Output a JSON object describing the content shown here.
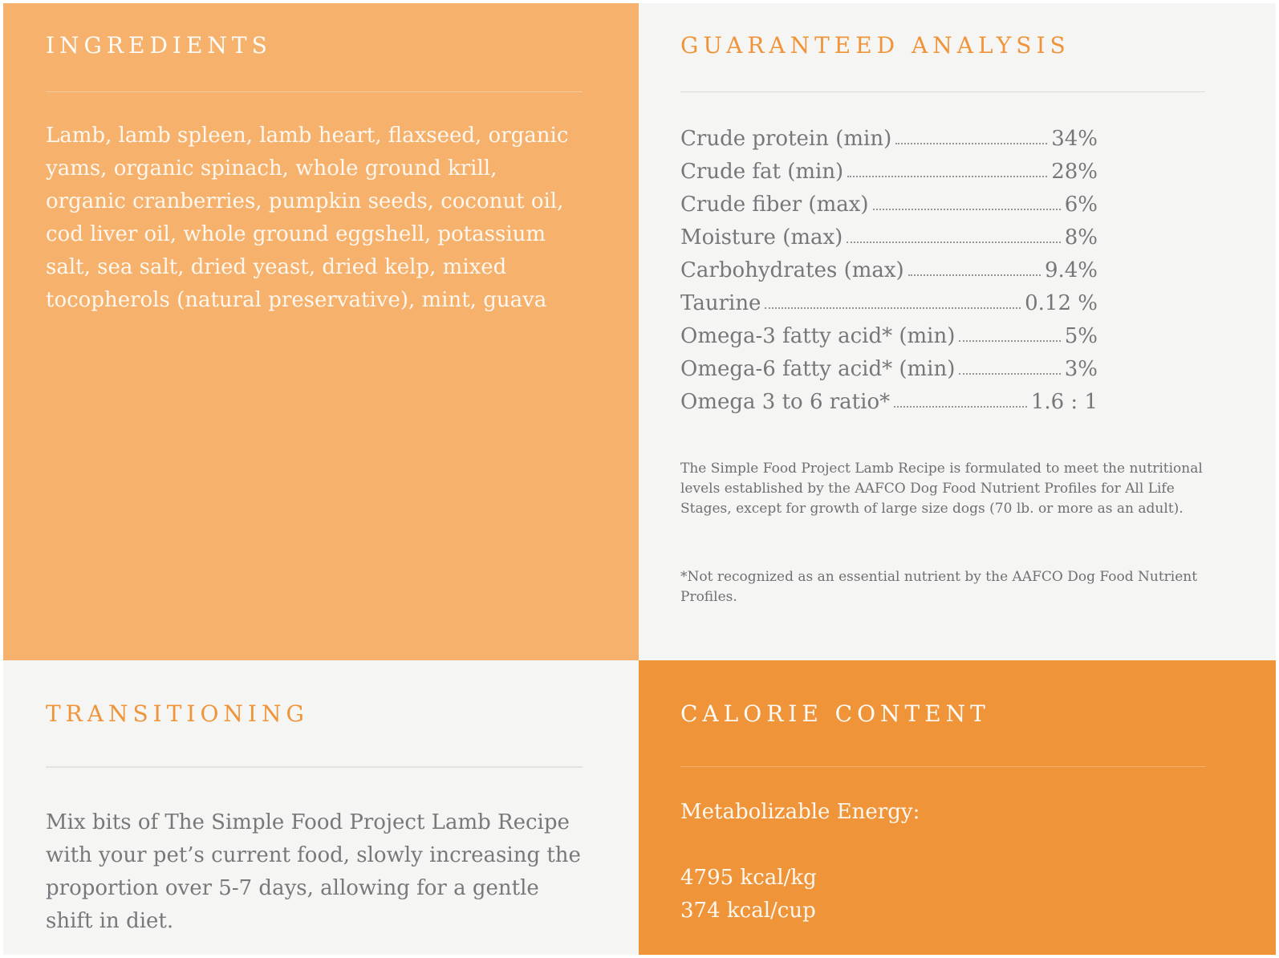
{
  "colors": {
    "panel_light_orange": "#F6B16C",
    "panel_dark_orange": "#F0943A",
    "panel_gray": "#F5F5F3",
    "accent_heading_orange": "#F0943A",
    "body_gray_text": "#76777A",
    "fine_print_gray": "#6E6F72",
    "white_text": "#FEF8F0"
  },
  "sections": {
    "ingredients": {
      "title": "INGREDIENTS",
      "body": "Lamb, lamb spleen, lamb heart, flaxseed, organic yams, organic spinach, whole ground krill, organic cranberries, pumpkin seeds, coconut oil, cod liver oil, whole ground eggshell, potassium salt, sea salt, dried yeast, dried kelp, mixed tocopherols (natural preservative), mint, guava"
    },
    "guaranteed_analysis": {
      "title": "GUARANTEED ANALYSIS",
      "rows": [
        {
          "label": "Crude protein (min)",
          "value": "34%"
        },
        {
          "label": "Crude fat (min)",
          "value": "28%"
        },
        {
          "label": "Crude fiber (max)",
          "value": "6%"
        },
        {
          "label": "Moisture (max)",
          "value": "8%"
        },
        {
          "label": "Carbohydrates (max)",
          "value": "9.4%"
        },
        {
          "label": "Taurine",
          "value": "0.12 %"
        },
        {
          "label": "Omega-3 fatty acid* (min)",
          "value": "5%"
        },
        {
          "label": "Omega-6 fatty acid* (min)",
          "value": "3%"
        },
        {
          "label": "Omega 3 to 6 ratio*",
          "value": "1.6 : 1"
        }
      ],
      "note": "The Simple Food Project Lamb Recipe is formulated to meet the nutritional levels established by the AAFCO Dog Food Nutrient Profiles for All Life Stages, except for growth of large size dogs (70 lb. or more as an adult).",
      "footnote": "*Not recognized as an essential nutrient by the AAFCO Dog Food Nutrient Profiles."
    },
    "transitioning": {
      "title": "TRANSITIONING",
      "body": "Mix bits of The Simple Food Project Lamb Recipe with your pet’s current food, slowly increasing the proportion over 5-7 days, allowing for a gentle shift in diet."
    },
    "calorie_content": {
      "title": "CALORIE CONTENT",
      "label": "Metabolizable Energy:",
      "values": [
        "4795 kcal/kg",
        "374 kcal/cup"
      ]
    }
  }
}
